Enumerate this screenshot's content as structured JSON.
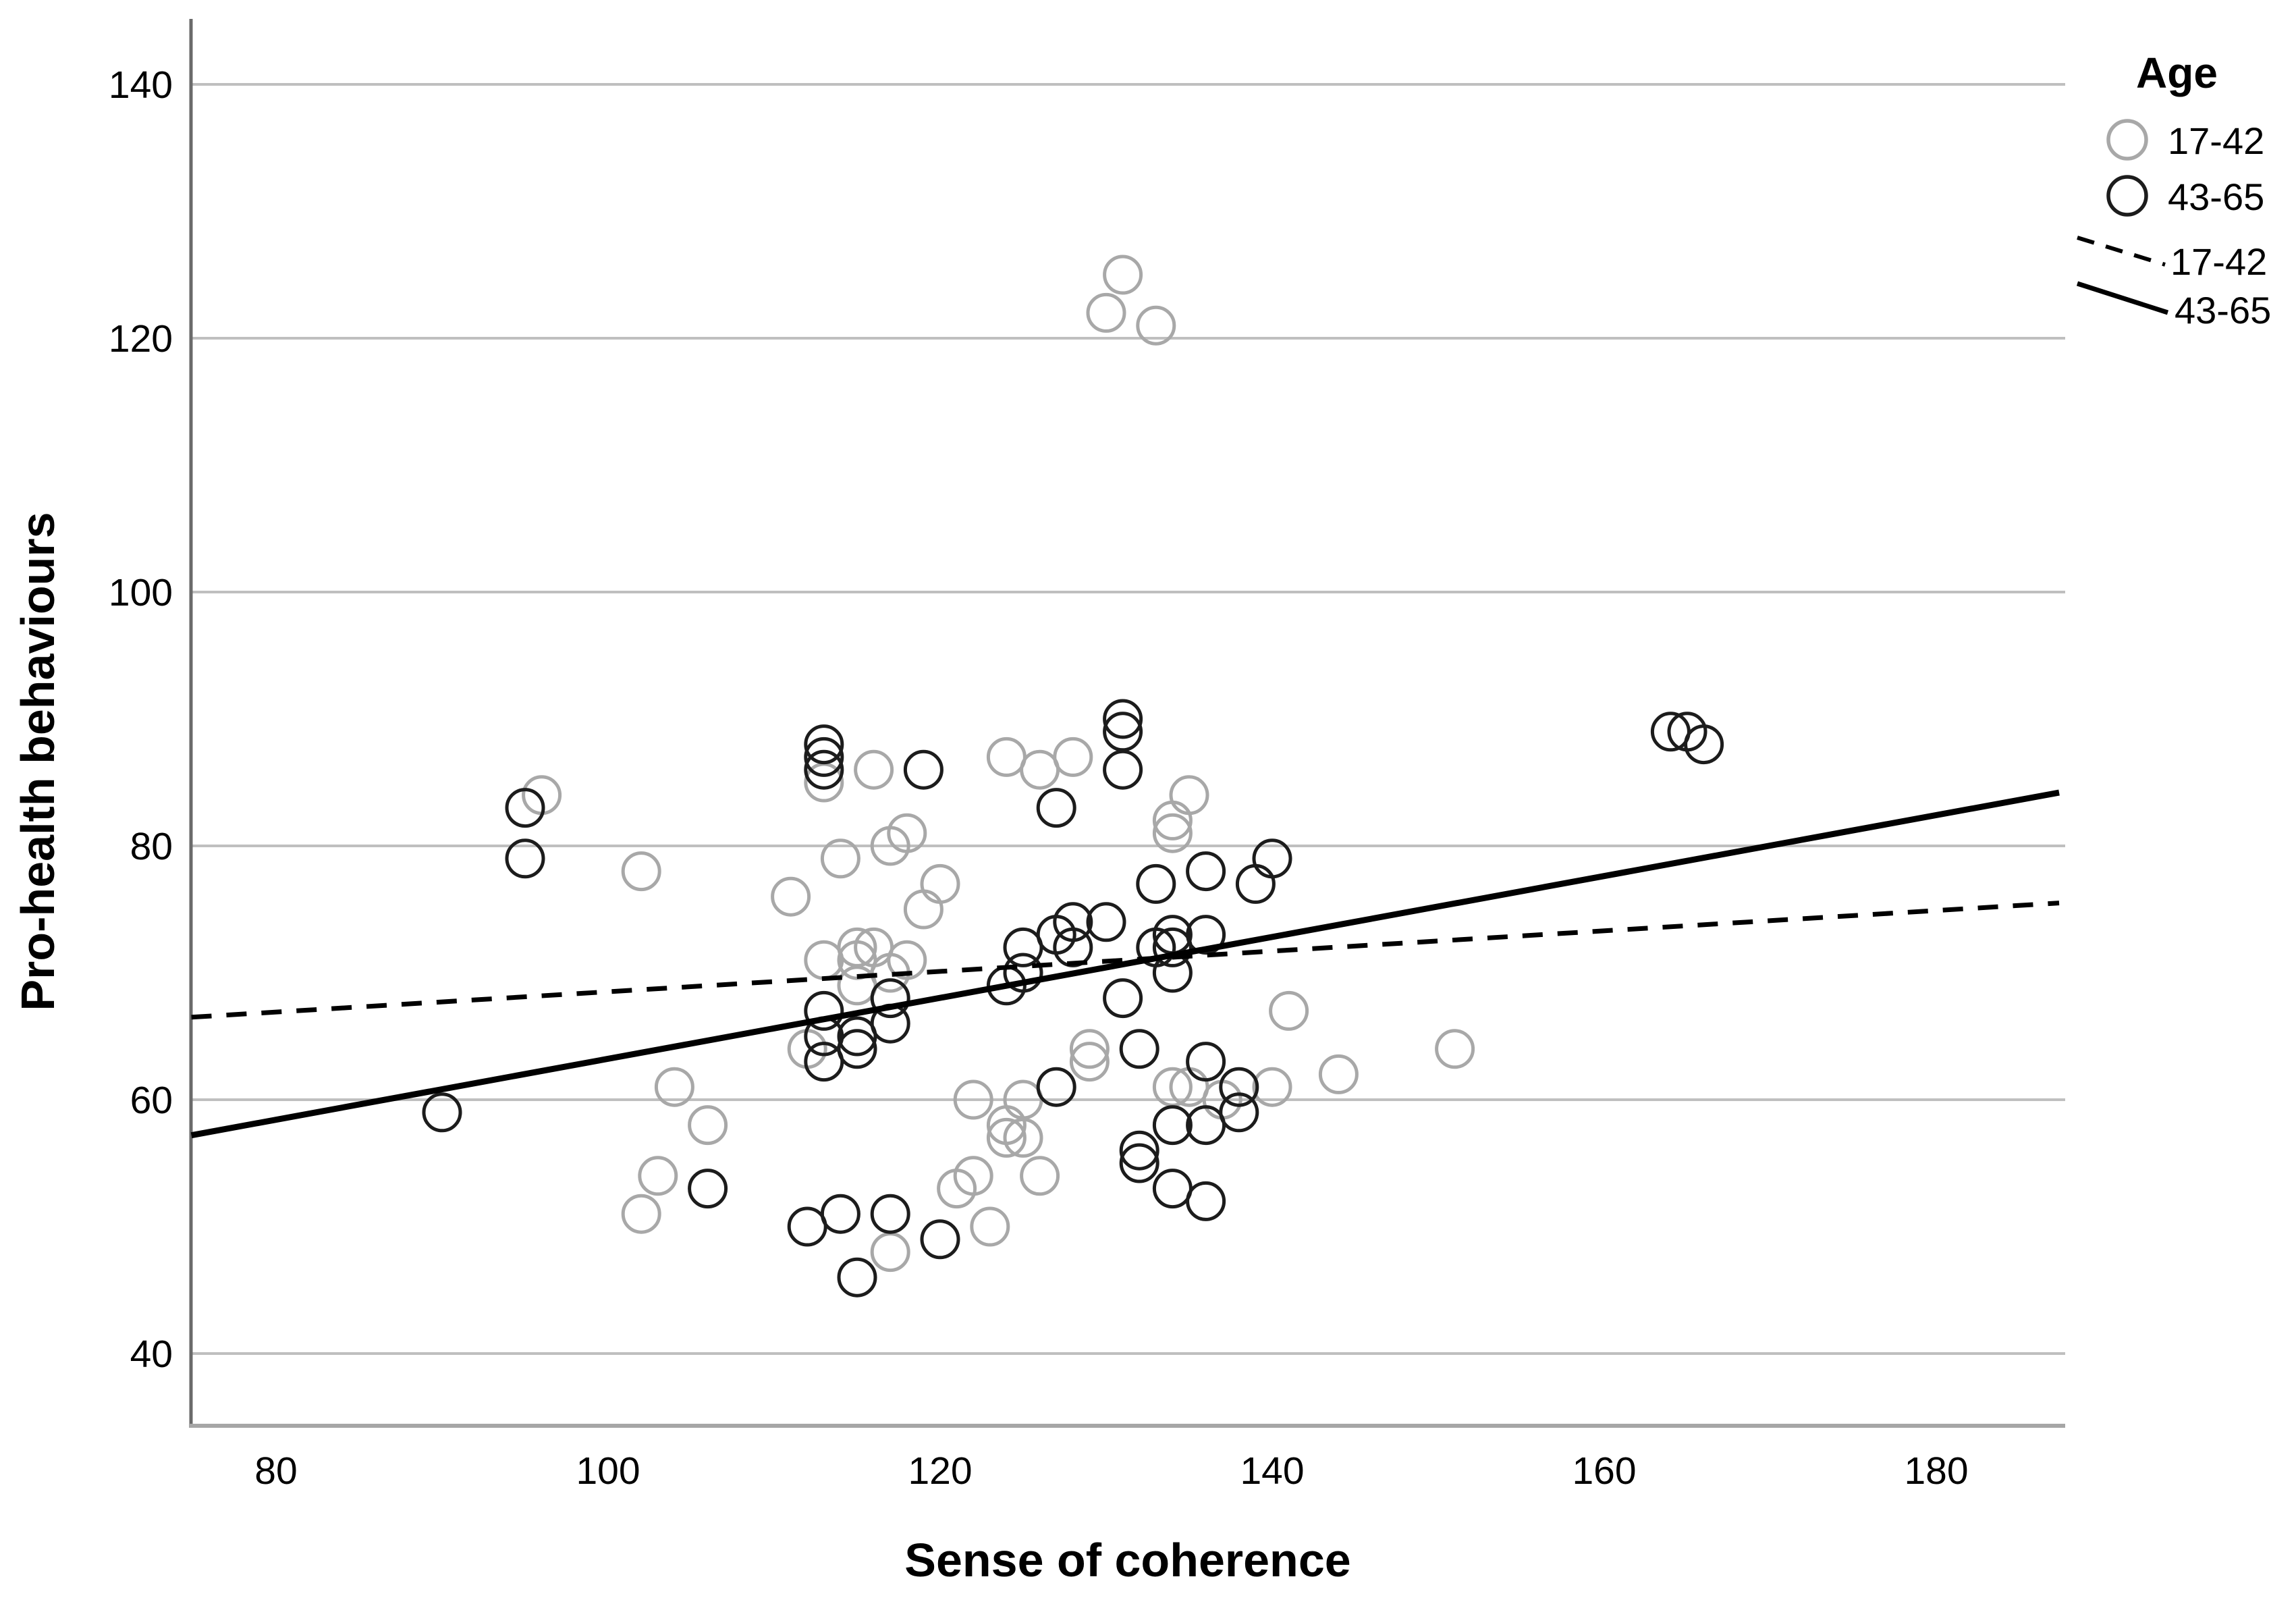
{
  "chart_data": {
    "type": "scatter",
    "title": "",
    "xlabel": "Sense of coherence",
    "ylabel": "Pro-health behaviours",
    "xlim": [
      74.9,
      187.4
    ],
    "ylim": [
      34.5,
      145.1
    ],
    "x_ticks": [
      80,
      100,
      120,
      140,
      160,
      180
    ],
    "y_ticks": [
      40,
      60,
      80,
      100,
      120,
      140
    ],
    "grid": "horizontal-only",
    "gridline_color": "#bfbfbf",
    "legend": {
      "title": "Age",
      "position": "top-right",
      "entries": [
        {
          "label": "17-42",
          "marker": "circle",
          "color": "#a8a8a8"
        },
        {
          "label": "43-65",
          "marker": "circle",
          "color": "#1c1c1c"
        },
        {
          "label": "17-42",
          "marker": "dashed-line",
          "color": "#000000"
        },
        {
          "label": "43-65",
          "marker": "solid-line",
          "color": "#000000"
        }
      ]
    },
    "series": [
      {
        "name": "17-42",
        "marker": "circle",
        "color": "#a8a8a8",
        "points": [
          [
            96,
            84
          ],
          [
            102,
            78
          ],
          [
            104,
            61
          ],
          [
            106,
            58
          ],
          [
            103,
            54
          ],
          [
            102,
            51
          ],
          [
            111,
            76
          ],
          [
            113,
            85
          ],
          [
            113,
            71
          ],
          [
            114,
            79
          ],
          [
            115,
            72
          ],
          [
            115,
            71
          ],
          [
            115,
            69
          ],
          [
            116,
            86
          ],
          [
            116,
            72
          ],
          [
            117,
            80
          ],
          [
            117,
            70
          ],
          [
            118,
            81
          ],
          [
            118,
            71
          ],
          [
            119,
            75
          ],
          [
            120,
            77
          ],
          [
            112,
            64
          ],
          [
            117,
            48
          ],
          [
            121,
            53
          ],
          [
            122,
            54
          ],
          [
            122,
            60
          ],
          [
            123,
            50
          ],
          [
            124,
            58
          ],
          [
            124,
            57
          ],
          [
            125,
            57
          ],
          [
            125,
            60
          ],
          [
            126,
            54
          ],
          [
            124,
            87
          ],
          [
            126,
            86
          ],
          [
            128,
            87
          ],
          [
            129,
            64
          ],
          [
            129,
            63
          ],
          [
            130,
            122
          ],
          [
            131,
            125
          ],
          [
            133,
            121
          ],
          [
            134,
            82
          ],
          [
            134,
            81
          ],
          [
            135,
            84
          ],
          [
            134,
            61
          ],
          [
            135,
            61
          ],
          [
            137,
            60
          ],
          [
            140,
            61
          ],
          [
            141,
            67
          ],
          [
            144,
            62
          ],
          [
            151,
            64
          ]
        ]
      },
      {
        "name": "43-65",
        "marker": "circle",
        "color": "#1c1c1c",
        "points": [
          [
            90,
            59
          ],
          [
            95,
            83
          ],
          [
            95,
            79
          ],
          [
            106,
            53
          ],
          [
            113,
            88
          ],
          [
            113,
            87
          ],
          [
            113,
            86
          ],
          [
            119,
            86
          ],
          [
            113,
            67
          ],
          [
            113,
            65
          ],
          [
            115,
            65
          ],
          [
            115,
            64
          ],
          [
            113,
            63
          ],
          [
            117,
            68
          ],
          [
            117,
            66
          ],
          [
            112,
            50
          ],
          [
            114,
            51
          ],
          [
            117,
            51
          ],
          [
            115,
            46
          ],
          [
            120,
            49
          ],
          [
            124,
            69
          ],
          [
            125,
            72
          ],
          [
            125,
            70
          ],
          [
            127,
            73
          ],
          [
            128,
            74
          ],
          [
            128,
            72
          ],
          [
            127,
            83
          ],
          [
            131,
            90
          ],
          [
            131,
            89
          ],
          [
            131,
            86
          ],
          [
            136,
            78
          ],
          [
            133,
            77
          ],
          [
            130,
            74
          ],
          [
            134,
            73
          ],
          [
            136,
            73
          ],
          [
            133,
            72
          ],
          [
            134,
            72
          ],
          [
            134,
            70
          ],
          [
            140,
            79
          ],
          [
            139,
            77
          ],
          [
            131,
            68
          ],
          [
            127,
            61
          ],
          [
            132,
            64
          ],
          [
            136,
            63
          ],
          [
            138,
            61
          ],
          [
            138,
            59
          ],
          [
            132,
            56
          ],
          [
            132,
            55
          ],
          [
            134,
            58
          ],
          [
            136,
            58
          ],
          [
            134,
            53
          ],
          [
            136,
            52
          ],
          [
            164,
            89
          ],
          [
            165,
            89
          ],
          [
            166,
            88
          ]
        ]
      }
    ],
    "fit_lines": [
      {
        "name": "17-42",
        "style": "dashed",
        "color": "#000000",
        "start": [
          74.9,
          66.5
        ],
        "end": [
          187.4,
          75.5
        ]
      },
      {
        "name": "43-65",
        "style": "solid",
        "color": "#000000",
        "start": [
          74.9,
          57.2
        ],
        "end": [
          187.4,
          84.2
        ]
      }
    ]
  }
}
